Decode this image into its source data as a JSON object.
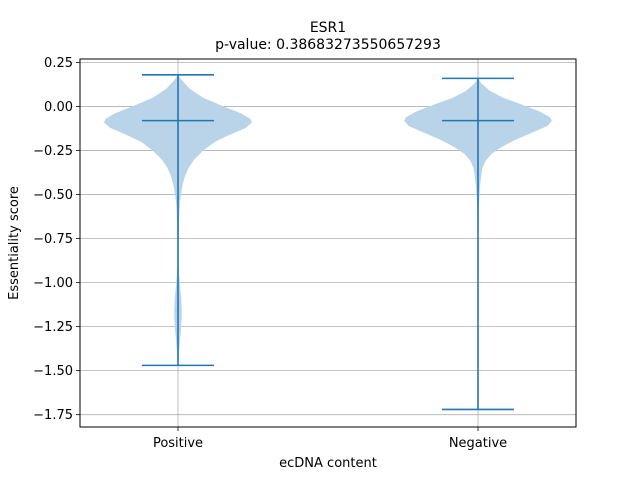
{
  "chart_data": {
    "type": "violin",
    "title": "ESR1",
    "subtitle": "p-value: 0.38683273550657293",
    "xlabel": "ecDNA content",
    "ylabel": "Essentiality score",
    "categories": [
      "Positive",
      "Negative"
    ],
    "ylim": [
      -1.82,
      0.27
    ],
    "yticks": [
      0.25,
      0.0,
      -0.25,
      -0.5,
      -0.75,
      -1.0,
      -1.25,
      -1.5,
      -1.75
    ],
    "ytick_labels": [
      "0.25",
      "0.00",
      "−0.25",
      "−0.50",
      "−0.75",
      "−1.00",
      "−1.25",
      "−1.50",
      "−1.75"
    ],
    "grid": true,
    "colors": {
      "fill": "#b9d4e8",
      "line": "#1f77b4",
      "grid": "#b0b0b0"
    },
    "series": [
      {
        "category": "Positive",
        "max": 0.18,
        "median": -0.08,
        "min": -1.47,
        "density": [
          [
            0.18,
            0.0
          ],
          [
            0.15,
            0.05
          ],
          [
            0.1,
            0.16
          ],
          [
            0.05,
            0.34
          ],
          [
            0.0,
            0.62
          ],
          [
            -0.04,
            0.86
          ],
          [
            -0.07,
            0.98
          ],
          [
            -0.09,
            1.0
          ],
          [
            -0.12,
            0.92
          ],
          [
            -0.16,
            0.7
          ],
          [
            -0.2,
            0.5
          ],
          [
            -0.25,
            0.34
          ],
          [
            -0.3,
            0.22
          ],
          [
            -0.35,
            0.14
          ],
          [
            -0.4,
            0.09
          ],
          [
            -0.45,
            0.06
          ],
          [
            -0.5,
            0.04
          ],
          [
            -0.55,
            0.025
          ],
          [
            -0.6,
            0.018
          ],
          [
            -0.7,
            0.012
          ],
          [
            -0.8,
            0.008
          ],
          [
            -0.9,
            0.008
          ],
          [
            -0.95,
            0.014
          ],
          [
            -1.0,
            0.024
          ],
          [
            -1.05,
            0.034
          ],
          [
            -1.1,
            0.044
          ],
          [
            -1.15,
            0.05
          ],
          [
            -1.2,
            0.05
          ],
          [
            -1.25,
            0.042
          ],
          [
            -1.3,
            0.032
          ],
          [
            -1.35,
            0.022
          ],
          [
            -1.4,
            0.014
          ],
          [
            -1.45,
            0.007
          ],
          [
            -1.47,
            0.0
          ]
        ]
      },
      {
        "category": "Negative",
        "max": 0.16,
        "median": -0.08,
        "min": -1.72,
        "density": [
          [
            0.16,
            0.0
          ],
          [
            0.13,
            0.05
          ],
          [
            0.09,
            0.16
          ],
          [
            0.05,
            0.34
          ],
          [
            0.01,
            0.6
          ],
          [
            -0.03,
            0.84
          ],
          [
            -0.06,
            0.97
          ],
          [
            -0.08,
            1.0
          ],
          [
            -0.11,
            0.94
          ],
          [
            -0.15,
            0.72
          ],
          [
            -0.19,
            0.5
          ],
          [
            -0.23,
            0.32
          ],
          [
            -0.27,
            0.18
          ],
          [
            -0.31,
            0.1
          ],
          [
            -0.35,
            0.06
          ],
          [
            -0.4,
            0.04
          ],
          [
            -0.45,
            0.028
          ],
          [
            -0.5,
            0.02
          ],
          [
            -0.55,
            0.014
          ],
          [
            -0.6,
            0.01
          ],
          [
            -0.7,
            0.007
          ],
          [
            -0.8,
            0.005
          ],
          [
            -1.0,
            0.004
          ],
          [
            -1.2,
            0.003
          ],
          [
            -1.4,
            0.003
          ],
          [
            -1.6,
            0.002
          ],
          [
            -1.72,
            0.0
          ]
        ]
      }
    ]
  }
}
